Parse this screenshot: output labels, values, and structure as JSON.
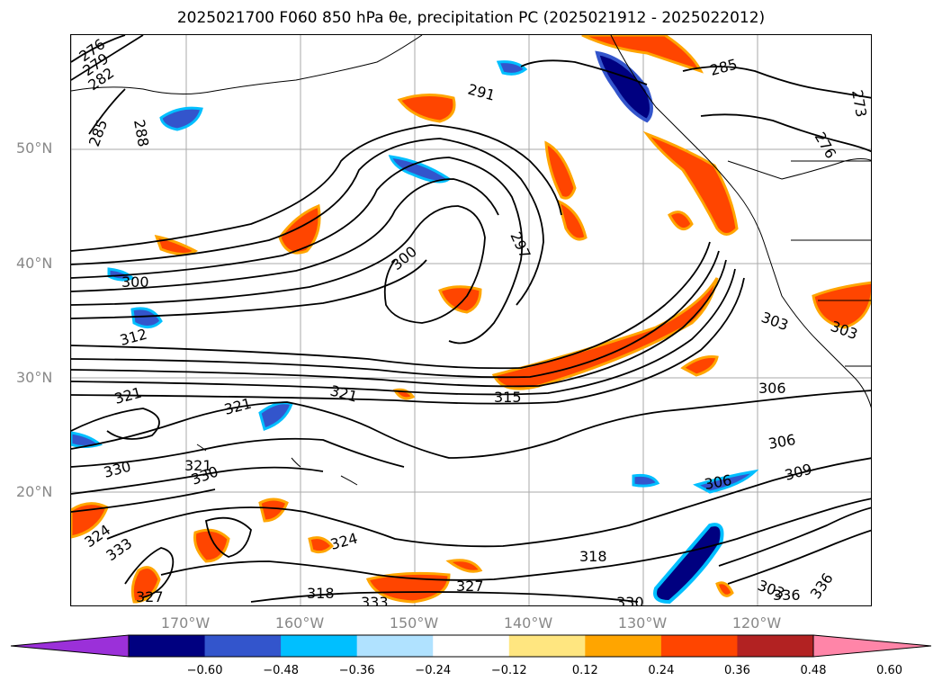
{
  "title": "2025021700 F060 850 hPa θe, precipitation PC (2025021912 - 2025022012)",
  "map": {
    "lat_labels": [
      "50°N",
      "40°N",
      "30°N",
      "20°N"
    ],
    "lon_labels": [
      "170°W",
      "160°W",
      "150°W",
      "140°W",
      "130°W",
      "120°W"
    ],
    "contour_labels": [
      "276",
      "279",
      "282",
      "285",
      "288",
      "291",
      "297",
      "300",
      "300",
      "285",
      "273",
      "276",
      "303",
      "303",
      "306",
      "306",
      "306",
      "309",
      "312",
      "315",
      "318",
      "318",
      "321",
      "321",
      "321",
      "321",
      "324",
      "324",
      "327",
      "327",
      "330",
      "330",
      "330",
      "333",
      "333",
      "336",
      "336",
      "303"
    ]
  },
  "colorbar": {
    "tick_labels": [
      "−0.60",
      "−0.48",
      "−0.36",
      "−0.24",
      "−0.12",
      "0.12",
      "0.24",
      "0.36",
      "0.48",
      "0.60"
    ],
    "colors": [
      "#9b30d9",
      "#000080",
      "#3355cc",
      "#00bfff",
      "#b0e2ff",
      "#ffffff",
      "#ffe680",
      "#ffa500",
      "#ff4500",
      "#b22222",
      "#ff85a8"
    ]
  }
}
